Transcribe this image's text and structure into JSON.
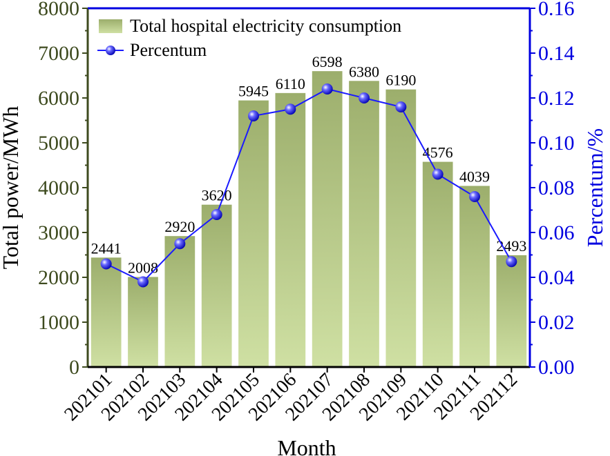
{
  "chart_data": {
    "type": "bar+line",
    "categories": [
      "202101",
      "202102",
      "202103",
      "202104",
      "202105",
      "202106",
      "202107",
      "202108",
      "202109",
      "202110",
      "202111",
      "202112"
    ],
    "series": [
      {
        "name": "Total hospital electricity consumption",
        "type": "bar",
        "axis": "left",
        "values": [
          2441,
          2008,
          2920,
          3620,
          5945,
          6110,
          6598,
          6380,
          6190,
          4576,
          4039,
          2493
        ],
        "data_labels": [
          "2441",
          "2008",
          "2920",
          "3620",
          "5945",
          "6110",
          "6598",
          "6380",
          "6190",
          "4576",
          "4039",
          "2493"
        ]
      },
      {
        "name": "Percentum",
        "type": "line",
        "axis": "right",
        "values": [
          0.046,
          0.038,
          0.055,
          0.068,
          0.112,
          0.115,
          0.124,
          0.12,
          0.116,
          0.086,
          0.076,
          0.047
        ]
      }
    ],
    "xlabel": "Month",
    "ylabel": "Total power/MWh",
    "y2label": "Percentum/%",
    "ylim": [
      0,
      8000
    ],
    "y2lim": [
      0,
      0.16
    ],
    "yticks": [
      "0",
      "1000",
      "2000",
      "3000",
      "4000",
      "5000",
      "6000",
      "7000",
      "8000"
    ],
    "y2ticks": [
      "0.00",
      "0.02",
      "0.04",
      "0.06",
      "0.08",
      "0.10",
      "0.12",
      "0.14",
      "0.16"
    ],
    "legend": [
      "Total hospital electricity consumption",
      "Percentum"
    ],
    "legend_position": "top-left",
    "grid": false
  },
  "colors": {
    "bar_top": "#9cae6c",
    "bar_bottom": "#cfe0a3",
    "left_axis": "#3d4a1e",
    "right_axis": "#0000e0",
    "line": "#1a1aff",
    "text": "#000000"
  }
}
